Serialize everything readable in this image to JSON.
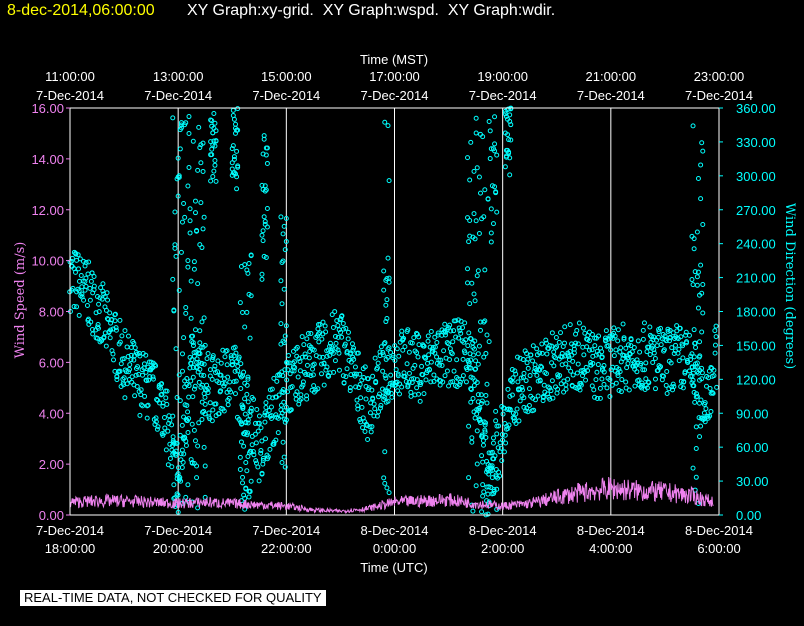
{
  "header": {
    "time": "8-dec-2014,06:00:00",
    "graphs": "XY Graph:xy-grid.  XY Graph:wspd.  XY Graph:wdir."
  },
  "disclaimer": "REAL-TIME DATA, NOT CHECKED FOR QUALITY",
  "colors": {
    "background": "#000000",
    "frame": "#ffffff",
    "grid": "#ffffff",
    "wind_speed": "#ee82ee",
    "wind_direction": "#00ffff",
    "timestamp": "#ffff00"
  },
  "chart_data": {
    "type": "scatter",
    "top_axis": {
      "title": "Time (MST)",
      "ticks": [
        {
          "time": "11:00:00",
          "date": "7-Dec-2014"
        },
        {
          "time": "13:00:00",
          "date": "7-Dec-2014"
        },
        {
          "time": "15:00:00",
          "date": "7-Dec-2014"
        },
        {
          "time": "17:00:00",
          "date": "7-Dec-2014"
        },
        {
          "time": "19:00:00",
          "date": "7-Dec-2014"
        },
        {
          "time": "21:00:00",
          "date": "7-Dec-2014"
        },
        {
          "time": "23:00:00",
          "date": "7-Dec-2014"
        }
      ]
    },
    "bottom_axis": {
      "title": "Time (UTC)",
      "ticks": [
        {
          "date": "7-Dec-2014",
          "time": "18:00:00"
        },
        {
          "date": "7-Dec-2014",
          "time": "20:00:00"
        },
        {
          "date": "7-Dec-2014",
          "time": "22:00:00"
        },
        {
          "date": "8-Dec-2014",
          "time": "0:00:00"
        },
        {
          "date": "8-Dec-2014",
          "time": "2:00:00"
        },
        {
          "date": "8-Dec-2014",
          "time": "4:00:00"
        },
        {
          "date": "8-Dec-2014",
          "time": "6:00:00"
        }
      ],
      "range_hours_utc": [
        18,
        30
      ]
    },
    "left_axis": {
      "title": "Wind Speed (m/s)",
      "range": [
        0,
        16
      ],
      "ticks": [
        "0.00",
        "2.00",
        "4.00",
        "6.00",
        "8.00",
        "10.00",
        "12.00",
        "14.00",
        "16.00"
      ]
    },
    "right_axis": {
      "title": "Wind Direction (degrees)",
      "range": [
        0,
        360
      ],
      "ticks": [
        "0.00",
        "30.00",
        "60.00",
        "90.00",
        "120.00",
        "150.00",
        "180.00",
        "210.00",
        "240.00",
        "270.00",
        "300.00",
        "330.00",
        "360.00"
      ]
    },
    "grid": true,
    "series": [
      {
        "name": "Wind Speed",
        "axis": "left",
        "style": "line",
        "hours_utc": [
          18.0,
          18.5,
          19.0,
          19.5,
          20.0,
          20.5,
          21.0,
          21.5,
          22.0,
          22.5,
          23.0,
          23.5,
          24.0,
          24.5,
          25.0,
          25.5,
          26.0,
          26.5,
          27.0,
          27.5,
          28.0,
          28.5,
          29.0,
          29.5,
          29.9
        ],
        "values": [
          0.5,
          0.55,
          0.55,
          0.5,
          0.45,
          0.5,
          0.45,
          0.4,
          0.35,
          0.2,
          0.15,
          0.25,
          0.5,
          0.55,
          0.6,
          0.45,
          0.35,
          0.45,
          0.7,
          0.9,
          1.05,
          0.95,
          0.9,
          0.75,
          0.5
        ]
      },
      {
        "name": "Wind Direction",
        "axis": "right",
        "style": "markers",
        "hours_utc": [
          18.0,
          18.25,
          18.5,
          18.75,
          19.0,
          19.25,
          19.5,
          19.75,
          20.0,
          20.25,
          20.5,
          20.75,
          21.0,
          21.25,
          21.5,
          21.75,
          22.0,
          22.25,
          22.5,
          22.75,
          23.0,
          23.25,
          23.5,
          23.75,
          24.0,
          24.25,
          24.5,
          24.75,
          25.0,
          25.25,
          25.5,
          25.75,
          26.0,
          26.25,
          26.5,
          26.75,
          27.0,
          27.25,
          27.5,
          27.75,
          28.0,
          28.25,
          28.5,
          28.75,
          29.0,
          29.25,
          29.5,
          29.75,
          29.95
        ],
        "values": [
          210,
          200,
          185,
          160,
          135,
          120,
          110,
          95,
          20,
          130,
          115,
          110,
          130,
          95,
          60,
          90,
          110,
          130,
          135,
          145,
          155,
          125,
          95,
          120,
          135,
          135,
          130,
          140,
          140,
          145,
          130,
          20,
          75,
          110,
          120,
          125,
          135,
          140,
          140,
          130,
          135,
          140,
          140,
          140,
          135,
          140,
          130,
          100,
          140
        ]
      }
    ],
    "direction_spread_degrees": 30,
    "direction_excursions": [
      {
        "hours_utc": [
          19.9,
          20.5
        ],
        "values": [
          5,
          360
        ]
      },
      {
        "hours_utc": [
          20.6,
          20.7
        ],
        "values": [
          290,
          360
        ]
      },
      {
        "hours_utc": [
          21.0,
          21.1
        ],
        "values": [
          280,
          360
        ]
      },
      {
        "hours_utc": [
          21.15,
          21.35
        ],
        "values": [
          5,
          250
        ]
      },
      {
        "hours_utc": [
          21.55,
          21.65
        ],
        "values": [
          200,
          340
        ]
      },
      {
        "hours_utc": [
          21.9,
          22.0
        ],
        "values": [
          40,
          280
        ]
      },
      {
        "hours_utc": [
          23.8,
          23.9
        ],
        "values": [
          15,
          360
        ]
      },
      {
        "hours_utc": [
          25.35,
          25.9
        ],
        "values": [
          0,
          360
        ]
      },
      {
        "hours_utc": [
          26.05,
          26.15
        ],
        "values": [
          300,
          360
        ]
      },
      {
        "hours_utc": [
          29.5,
          29.7
        ],
        "values": [
          10,
          350
        ]
      }
    ]
  }
}
